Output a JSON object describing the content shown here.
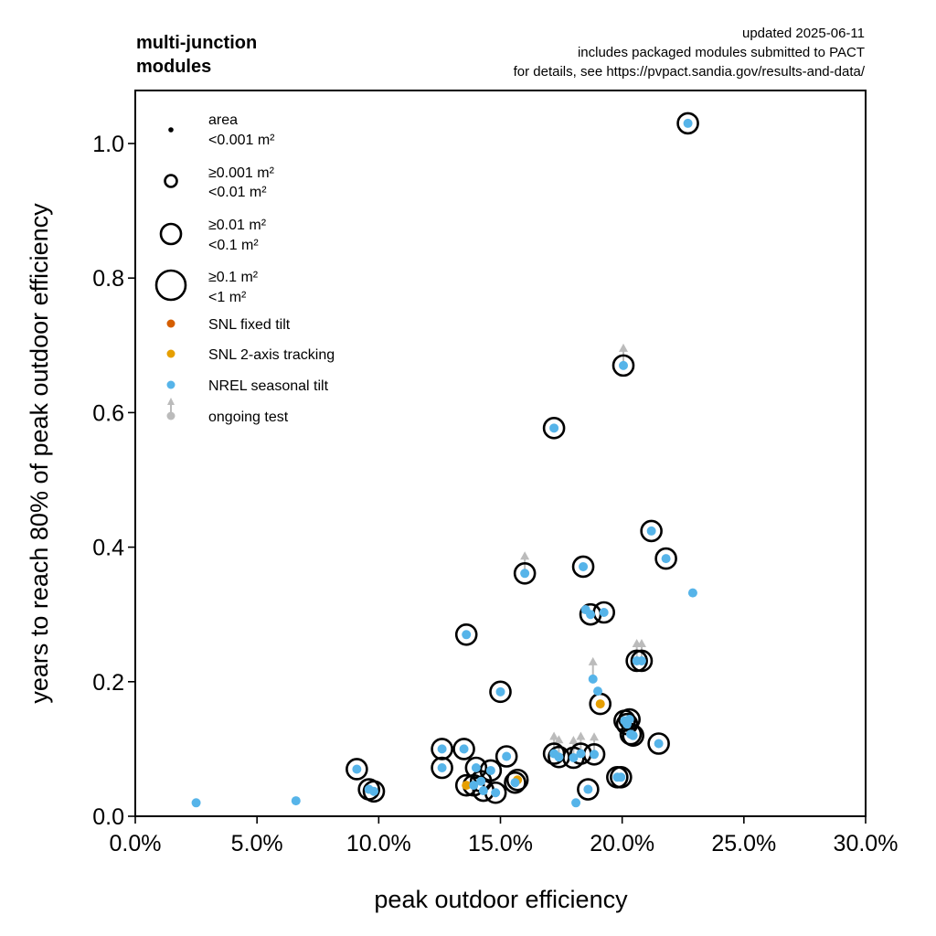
{
  "chart_data": {
    "type": "scatter",
    "title": "multi-junction\nmodules",
    "title_lines": [
      "multi-junction",
      "modules"
    ],
    "annotation_lines": [
      "updated 2025-06-11",
      "includes packaged modules submitted to PACT",
      "for details, see https://pvpact.sandia.gov/results-and-data/"
    ],
    "xlabel": "peak outdoor efficiency",
    "ylabel": "years to reach 80% of peak outdoor efficiency",
    "xlim": [
      0,
      30
    ],
    "ylim": [
      0,
      1.08
    ],
    "x_ticks": [
      0,
      5,
      10,
      15,
      20,
      25,
      30
    ],
    "x_tick_labels": [
      "0.0%",
      "5.0%",
      "10.0%",
      "15.0%",
      "20.0%",
      "25.0%",
      "30.0%"
    ],
    "y_ticks": [
      0.0,
      0.2,
      0.4,
      0.6,
      0.8,
      1.0
    ],
    "y_tick_labels": [
      "0.0",
      "0.2",
      "0.4",
      "0.6",
      "0.8",
      "1.0"
    ],
    "grid": false,
    "legend_position": "top-left",
    "legend": {
      "size_title": "area",
      "size_entries": [
        {
          "size_class": 0,
          "lines": [
            "<0.001 m²"
          ]
        },
        {
          "size_class": 1,
          "lines": [
            "≥0.001 m²",
            "<0.01 m²"
          ]
        },
        {
          "size_class": 2,
          "lines": [
            "≥0.01 m²",
            "<0.1 m²"
          ]
        },
        {
          "size_class": 3,
          "lines": [
            "≥0.1 m²",
            "<1 m²"
          ]
        }
      ],
      "color_entries": [
        {
          "key": "snl_fixed",
          "label": "SNL fixed tilt",
          "color": "#D55E00"
        },
        {
          "key": "snl_2axis",
          "label": "SNL 2-axis tracking",
          "color": "#E69F00"
        },
        {
          "key": "nrel_seasonal",
          "label": "NREL seasonal tilt",
          "color": "#56B4E9"
        },
        {
          "key": "ongoing",
          "label": "ongoing test",
          "color": "#BBBBBB"
        }
      ]
    },
    "size_classes": [
      "<0.001 m²",
      "≥0.001 m² <0.01 m²",
      "≥0.01 m² <0.1 m²",
      "≥0.1 m² <1 m²"
    ],
    "series": [
      {
        "name": "SNL fixed tilt",
        "key": "snl_fixed",
        "color": "#D55E00",
        "points": []
      },
      {
        "name": "SNL 2-axis tracking",
        "key": "snl_2axis",
        "color": "#E69F00",
        "points": [
          {
            "x": 13.6,
            "y": 0.046,
            "size_class": 2,
            "ongoing": false
          },
          {
            "x": 15.7,
            "y": 0.054,
            "size_class": 2,
            "ongoing": false
          },
          {
            "x": 19.1,
            "y": 0.167,
            "size_class": 2,
            "ongoing": false
          }
        ]
      },
      {
        "name": "NREL seasonal tilt",
        "key": "nrel_seasonal",
        "color": "#56B4E9",
        "points": [
          {
            "x": 22.7,
            "y": 1.03,
            "size_class": 2,
            "ongoing": false
          },
          {
            "x": 20.05,
            "y": 0.67,
            "size_class": 2,
            "ongoing": true
          },
          {
            "x": 17.2,
            "y": 0.577,
            "size_class": 2,
            "ongoing": false
          },
          {
            "x": 21.2,
            "y": 0.424,
            "size_class": 2,
            "ongoing": false
          },
          {
            "x": 21.8,
            "y": 0.383,
            "size_class": 2,
            "ongoing": false
          },
          {
            "x": 18.4,
            "y": 0.371,
            "size_class": 2,
            "ongoing": false
          },
          {
            "x": 16.0,
            "y": 0.361,
            "size_class": 2,
            "ongoing": true
          },
          {
            "x": 22.9,
            "y": 0.332,
            "size_class": 0,
            "ongoing": false
          },
          {
            "x": 19.25,
            "y": 0.303,
            "size_class": 2,
            "ongoing": false
          },
          {
            "x": 18.5,
            "y": 0.307,
            "size_class": 0,
            "ongoing": false
          },
          {
            "x": 18.7,
            "y": 0.3,
            "size_class": 2,
            "ongoing": false
          },
          {
            "x": 13.6,
            "y": 0.27,
            "size_class": 2,
            "ongoing": false
          },
          {
            "x": 20.6,
            "y": 0.231,
            "size_class": 2,
            "ongoing": true
          },
          {
            "x": 20.8,
            "y": 0.231,
            "size_class": 2,
            "ongoing": true
          },
          {
            "x": 18.8,
            "y": 0.204,
            "size_class": 0,
            "ongoing": true
          },
          {
            "x": 19.0,
            "y": 0.186,
            "size_class": 0,
            "ongoing": false
          },
          {
            "x": 15.0,
            "y": 0.185,
            "size_class": 2,
            "ongoing": false
          },
          {
            "x": 20.1,
            "y": 0.142,
            "size_class": 2,
            "ongoing": false
          },
          {
            "x": 20.3,
            "y": 0.144,
            "size_class": 2,
            "ongoing": false
          },
          {
            "x": 20.2,
            "y": 0.137,
            "size_class": 2,
            "ongoing": false
          },
          {
            "x": 20.35,
            "y": 0.122,
            "size_class": 2,
            "ongoing": false
          },
          {
            "x": 20.45,
            "y": 0.12,
            "size_class": 2,
            "ongoing": false
          },
          {
            "x": 21.5,
            "y": 0.108,
            "size_class": 2,
            "ongoing": false
          },
          {
            "x": 12.6,
            "y": 0.1,
            "size_class": 2,
            "ongoing": false
          },
          {
            "x": 13.5,
            "y": 0.1,
            "size_class": 2,
            "ongoing": false
          },
          {
            "x": 17.2,
            "y": 0.093,
            "size_class": 2,
            "ongoing": true
          },
          {
            "x": 17.4,
            "y": 0.088,
            "size_class": 2,
            "ongoing": true
          },
          {
            "x": 18.0,
            "y": 0.087,
            "size_class": 2,
            "ongoing": true
          },
          {
            "x": 18.3,
            "y": 0.093,
            "size_class": 2,
            "ongoing": true
          },
          {
            "x": 18.85,
            "y": 0.092,
            "size_class": 2,
            "ongoing": true
          },
          {
            "x": 15.25,
            "y": 0.089,
            "size_class": 2,
            "ongoing": false
          },
          {
            "x": 9.1,
            "y": 0.07,
            "size_class": 2,
            "ongoing": false
          },
          {
            "x": 12.6,
            "y": 0.072,
            "size_class": 2,
            "ongoing": false
          },
          {
            "x": 14.0,
            "y": 0.072,
            "size_class": 2,
            "ongoing": false
          },
          {
            "x": 14.6,
            "y": 0.068,
            "size_class": 2,
            "ongoing": false
          },
          {
            "x": 14.2,
            "y": 0.052,
            "size_class": 2,
            "ongoing": false
          },
          {
            "x": 13.9,
            "y": 0.046,
            "size_class": 2,
            "ongoing": false
          },
          {
            "x": 14.3,
            "y": 0.038,
            "size_class": 2,
            "ongoing": false
          },
          {
            "x": 14.8,
            "y": 0.035,
            "size_class": 2,
            "ongoing": false
          },
          {
            "x": 15.6,
            "y": 0.05,
            "size_class": 2,
            "ongoing": false
          },
          {
            "x": 9.6,
            "y": 0.04,
            "size_class": 2,
            "ongoing": false
          },
          {
            "x": 9.8,
            "y": 0.037,
            "size_class": 2,
            "ongoing": false
          },
          {
            "x": 19.8,
            "y": 0.058,
            "size_class": 2,
            "ongoing": false
          },
          {
            "x": 19.95,
            "y": 0.058,
            "size_class": 2,
            "ongoing": false
          },
          {
            "x": 18.6,
            "y": 0.04,
            "size_class": 2,
            "ongoing": false
          },
          {
            "x": 18.1,
            "y": 0.02,
            "size_class": 0,
            "ongoing": false
          },
          {
            "x": 2.5,
            "y": 0.02,
            "size_class": 0,
            "ongoing": false
          },
          {
            "x": 6.6,
            "y": 0.023,
            "size_class": 0,
            "ongoing": false
          }
        ]
      }
    ]
  }
}
